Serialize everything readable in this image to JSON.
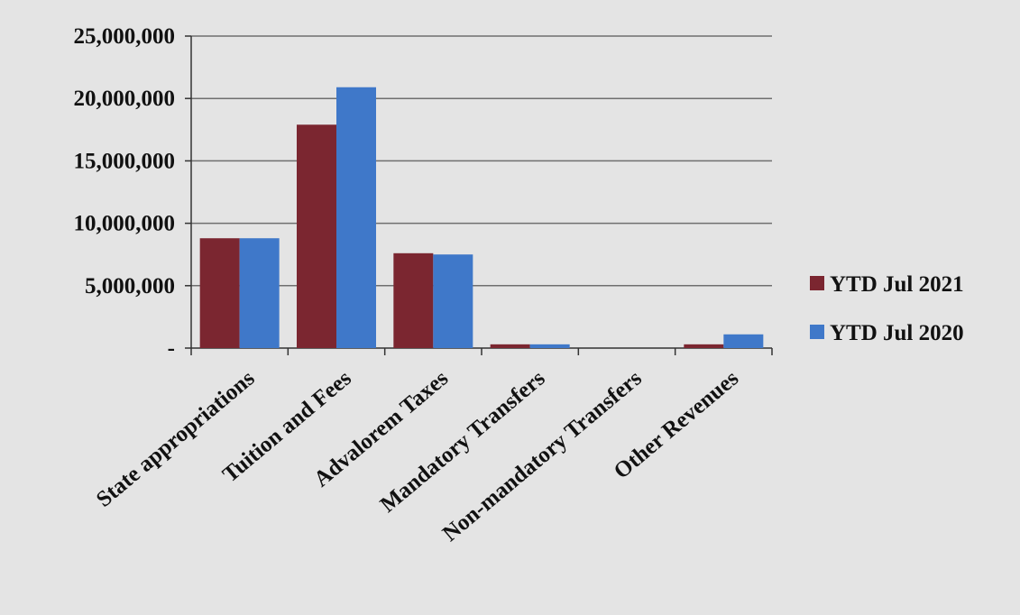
{
  "chart_data": {
    "type": "bar",
    "categories": [
      "State appropriations",
      "Tuition and Fees",
      "Advalorem Taxes",
      "Mandatory Transfers",
      "Non-mandatory Transfers",
      "Other Revenues"
    ],
    "series": [
      {
        "name": "YTD Jul 2021",
        "color": "#7b2630",
        "values": [
          8800000,
          17900000,
          7600000,
          300000,
          0,
          300000
        ]
      },
      {
        "name": "YTD Jul 2020",
        "color": "#3f78c9",
        "values": [
          8800000,
          20900000,
          7500000,
          300000,
          0,
          1100000
        ]
      }
    ],
    "ylim": [
      0,
      25000000
    ],
    "yticks": [
      0,
      5000000,
      10000000,
      15000000,
      20000000,
      25000000
    ],
    "ytick_labels": [
      "-",
      "5,000,000",
      "10,000,000",
      "15,000,000",
      "20,000,000",
      "25,000,000"
    ],
    "grid": true,
    "legend_position": "right",
    "title": "",
    "xlabel": "",
    "ylabel": ""
  }
}
